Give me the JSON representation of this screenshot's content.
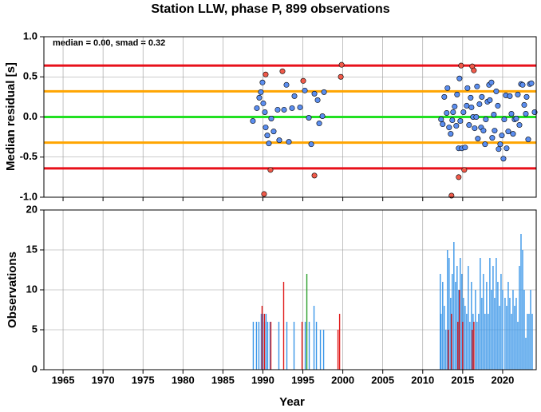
{
  "chart_data": [
    {
      "type": "scatter",
      "title": "Station LLW, phase P, 899 observations",
      "annotation": "median = 0.00, smad = 0.32",
      "ylabel": "Median residual [s]",
      "xlim": [
        1962.6,
        2024.2
      ],
      "xticks": [
        1965,
        1970,
        1975,
        1980,
        1985,
        1990,
        1995,
        2000,
        2005,
        2010,
        2015,
        2020
      ],
      "ylim": [
        -1,
        1
      ],
      "yticks": [
        {
          "value": -1,
          "label": "-1.0"
        },
        {
          "value": -0.5,
          "label": "-0.5"
        },
        {
          "value": 0,
          "label": "0.0"
        },
        {
          "value": 0.5,
          "label": "0.5"
        },
        {
          "value": 1,
          "label": "1.0"
        }
      ],
      "grid": true,
      "hlines": [
        {
          "value": 0.64,
          "color": "#e8101a"
        },
        {
          "value": 0.32,
          "color": "#ffa500"
        },
        {
          "value": 0,
          "color": "#22e022"
        },
        {
          "value": -0.32,
          "color": "#ffa500"
        },
        {
          "value": -0.64,
          "color": "#e8101a"
        }
      ],
      "series": [
        {
          "color": "#5b8ef0",
          "x": [
            1988.75,
            1989.25,
            1989.55,
            1989.75,
            1989.95,
            1990.05,
            1990.25,
            1990.35,
            1990.55,
            1990.75,
            1991.05,
            1991.35,
            1991.85,
            1992.05,
            1992.65,
            1992.95,
            1993.25,
            1993.65,
            1993.95,
            1994.65,
            1995.25,
            1995.75,
            1996.05,
            1996.45,
            1996.85,
            1997.05,
            1997.45,
            1997.65,
            2012.3,
            2012.5,
            2012.7,
            2013.0,
            2013.1,
            2013.3,
            2013.5,
            2013.7,
            2013.8,
            2014.0,
            2014.2,
            2014.3,
            2014.5,
            2014.6,
            2014.7,
            2014.9,
            2015.1,
            2015.3,
            2015.5,
            2015.6,
            2015.8,
            2016.0,
            2016.1,
            2016.3,
            2016.5,
            2016.7,
            2016.8,
            2016.9,
            2017.1,
            2017.3,
            2017.4,
            2017.6,
            2017.8,
            2017.9,
            2018.1,
            2018.3,
            2018.4,
            2018.6,
            2018.7,
            2018.9,
            2019.0,
            2019.2,
            2019.4,
            2019.5,
            2019.7,
            2019.9,
            2020.1,
            2020.2,
            2020.4,
            2020.5,
            2020.7,
            2020.9,
            2021.1,
            2021.3,
            2021.5,
            2021.7,
            2021.9,
            2022.1,
            2022.3,
            2022.5,
            2022.7,
            2022.9,
            2023.0,
            2023.2,
            2023.4,
            2023.6,
            2024.0
          ],
          "values": [
            -0.05,
            0.11,
            0.24,
            0.31,
            0.43,
            0.17,
            0.06,
            -0.13,
            -0.23,
            -0.33,
            -0.02,
            -0.18,
            0.09,
            -0.29,
            0.09,
            0.4,
            -0.31,
            0.11,
            0.26,
            0.12,
            0.33,
            -0.01,
            -0.34,
            0.29,
            0.21,
            -0.08,
            0.01,
            0.31,
            -0.03,
            -0.09,
            0.25,
            0.05,
            0.36,
            -0.13,
            -0.21,
            -0.04,
            0.06,
            0.13,
            -0.11,
            0.28,
            -0.39,
            0.48,
            -0.05,
            -0.39,
            0.06,
            -0.38,
            0.14,
            0.36,
            -0.1,
            0.24,
            0.12,
            0.0,
            -0.14,
            0.0,
            0.38,
            -0.27,
            0.16,
            -0.13,
            0.25,
            -0.17,
            -0.34,
            -0.03,
            0.19,
            0.4,
            0.21,
            0.43,
            -0.26,
            0.03,
            -0.17,
            0.32,
            0.14,
            -0.4,
            -0.34,
            -0.23,
            -0.52,
            -0.03,
            0.27,
            -0.39,
            -0.18,
            0.26,
            0.04,
            -0.21,
            -0.03,
            -0.02,
            0.28,
            -0.1,
            0.41,
            0.4,
            0.15,
            0.04,
            0.25,
            -0.28,
            0.41,
            0.42,
            0.06
          ]
        },
        {
          "color": "#f05a4a",
          "x": [
            1990.15,
            1990.35,
            1990.95,
            1992.45,
            1995.05,
            1996.45,
            1999.75,
            1999.85,
            2013.6,
            2014.5,
            2014.8,
            2015.2,
            2016.2,
            2016.4
          ],
          "values": [
            -0.96,
            0.53,
            -0.66,
            0.57,
            0.45,
            -0.73,
            0.5,
            0.65,
            -0.98,
            -0.75,
            0.64,
            -0.66,
            0.63,
            0.58
          ]
        }
      ]
    },
    {
      "type": "bar",
      "xlabel": "Year",
      "ylabel": "Observations",
      "xlim": [
        1962.6,
        2024.2
      ],
      "xticks": [
        1965,
        1970,
        1975,
        1980,
        1985,
        1990,
        1995,
        2000,
        2005,
        2010,
        2015,
        2020
      ],
      "ylim": [
        0,
        20
      ],
      "yticks": [
        0,
        5,
        10,
        15,
        20
      ],
      "grid": true,
      "series": [
        {
          "color": "#3a96e8",
          "x": [
            1988.8,
            1989.2,
            1989.5,
            1989.8,
            1990.0,
            1990.2,
            1990.4,
            1990.6,
            1990.9,
            1992.0,
            1993.0,
            1993.9,
            1995.3,
            1995.8,
            1996.4,
            1996.7,
            1997.2,
            1997.6,
            2012.2,
            2012.3,
            2012.5,
            2012.7,
            2012.9,
            2013.1,
            2013.3,
            2013.5,
            2013.7,
            2013.9,
            2014.1,
            2014.3,
            2014.5,
            2014.7,
            2014.9,
            2015.1,
            2015.3,
            2015.5,
            2015.7,
            2015.9,
            2016.1,
            2016.3,
            2016.6,
            2016.8,
            2017.0,
            2017.2,
            2017.4,
            2017.6,
            2017.8,
            2018.0,
            2018.2,
            2018.4,
            2018.6,
            2018.8,
            2019.0,
            2019.2,
            2019.4,
            2019.6,
            2019.8,
            2020.0,
            2020.3,
            2020.5,
            2020.7,
            2020.9,
            2021.1,
            2021.3,
            2021.5,
            2021.7,
            2021.9,
            2022.1,
            2022.3,
            2022.5,
            2022.7,
            2022.9,
            2023.1,
            2023.3,
            2023.5,
            2023.7
          ],
          "values": [
            6,
            6,
            6,
            7,
            7,
            6,
            7,
            6,
            6,
            6,
            6,
            6,
            6,
            6,
            8,
            6,
            5,
            5,
            12,
            7,
            11,
            8,
            5,
            15,
            14,
            9,
            12,
            16,
            11,
            13,
            10,
            14,
            12,
            9,
            8,
            7,
            13,
            6,
            11,
            7,
            10,
            6,
            7,
            14,
            9,
            12,
            7,
            11,
            7,
            14,
            10,
            13,
            9,
            14,
            11,
            8,
            12,
            10,
            9,
            8,
            11,
            9,
            7,
            10,
            8,
            9,
            6,
            13,
            17,
            15,
            10,
            4,
            7,
            7,
            10,
            7
          ]
        },
        {
          "color": "#e01a1a",
          "x": [
            1989.9,
            1990.2,
            1991.0,
            1992.6,
            1994.9,
            1999.4,
            1999.6,
            2013.2,
            2013.6,
            2014.4,
            2014.6,
            2015.0,
            2016.2,
            2016.4
          ],
          "values": [
            8,
            7,
            6,
            11,
            6,
            5,
            7,
            5,
            7,
            6,
            10,
            6,
            5,
            6
          ]
        },
        {
          "color": "#2ca02c",
          "x": [
            1995.5
          ],
          "values": [
            12
          ]
        }
      ]
    }
  ]
}
